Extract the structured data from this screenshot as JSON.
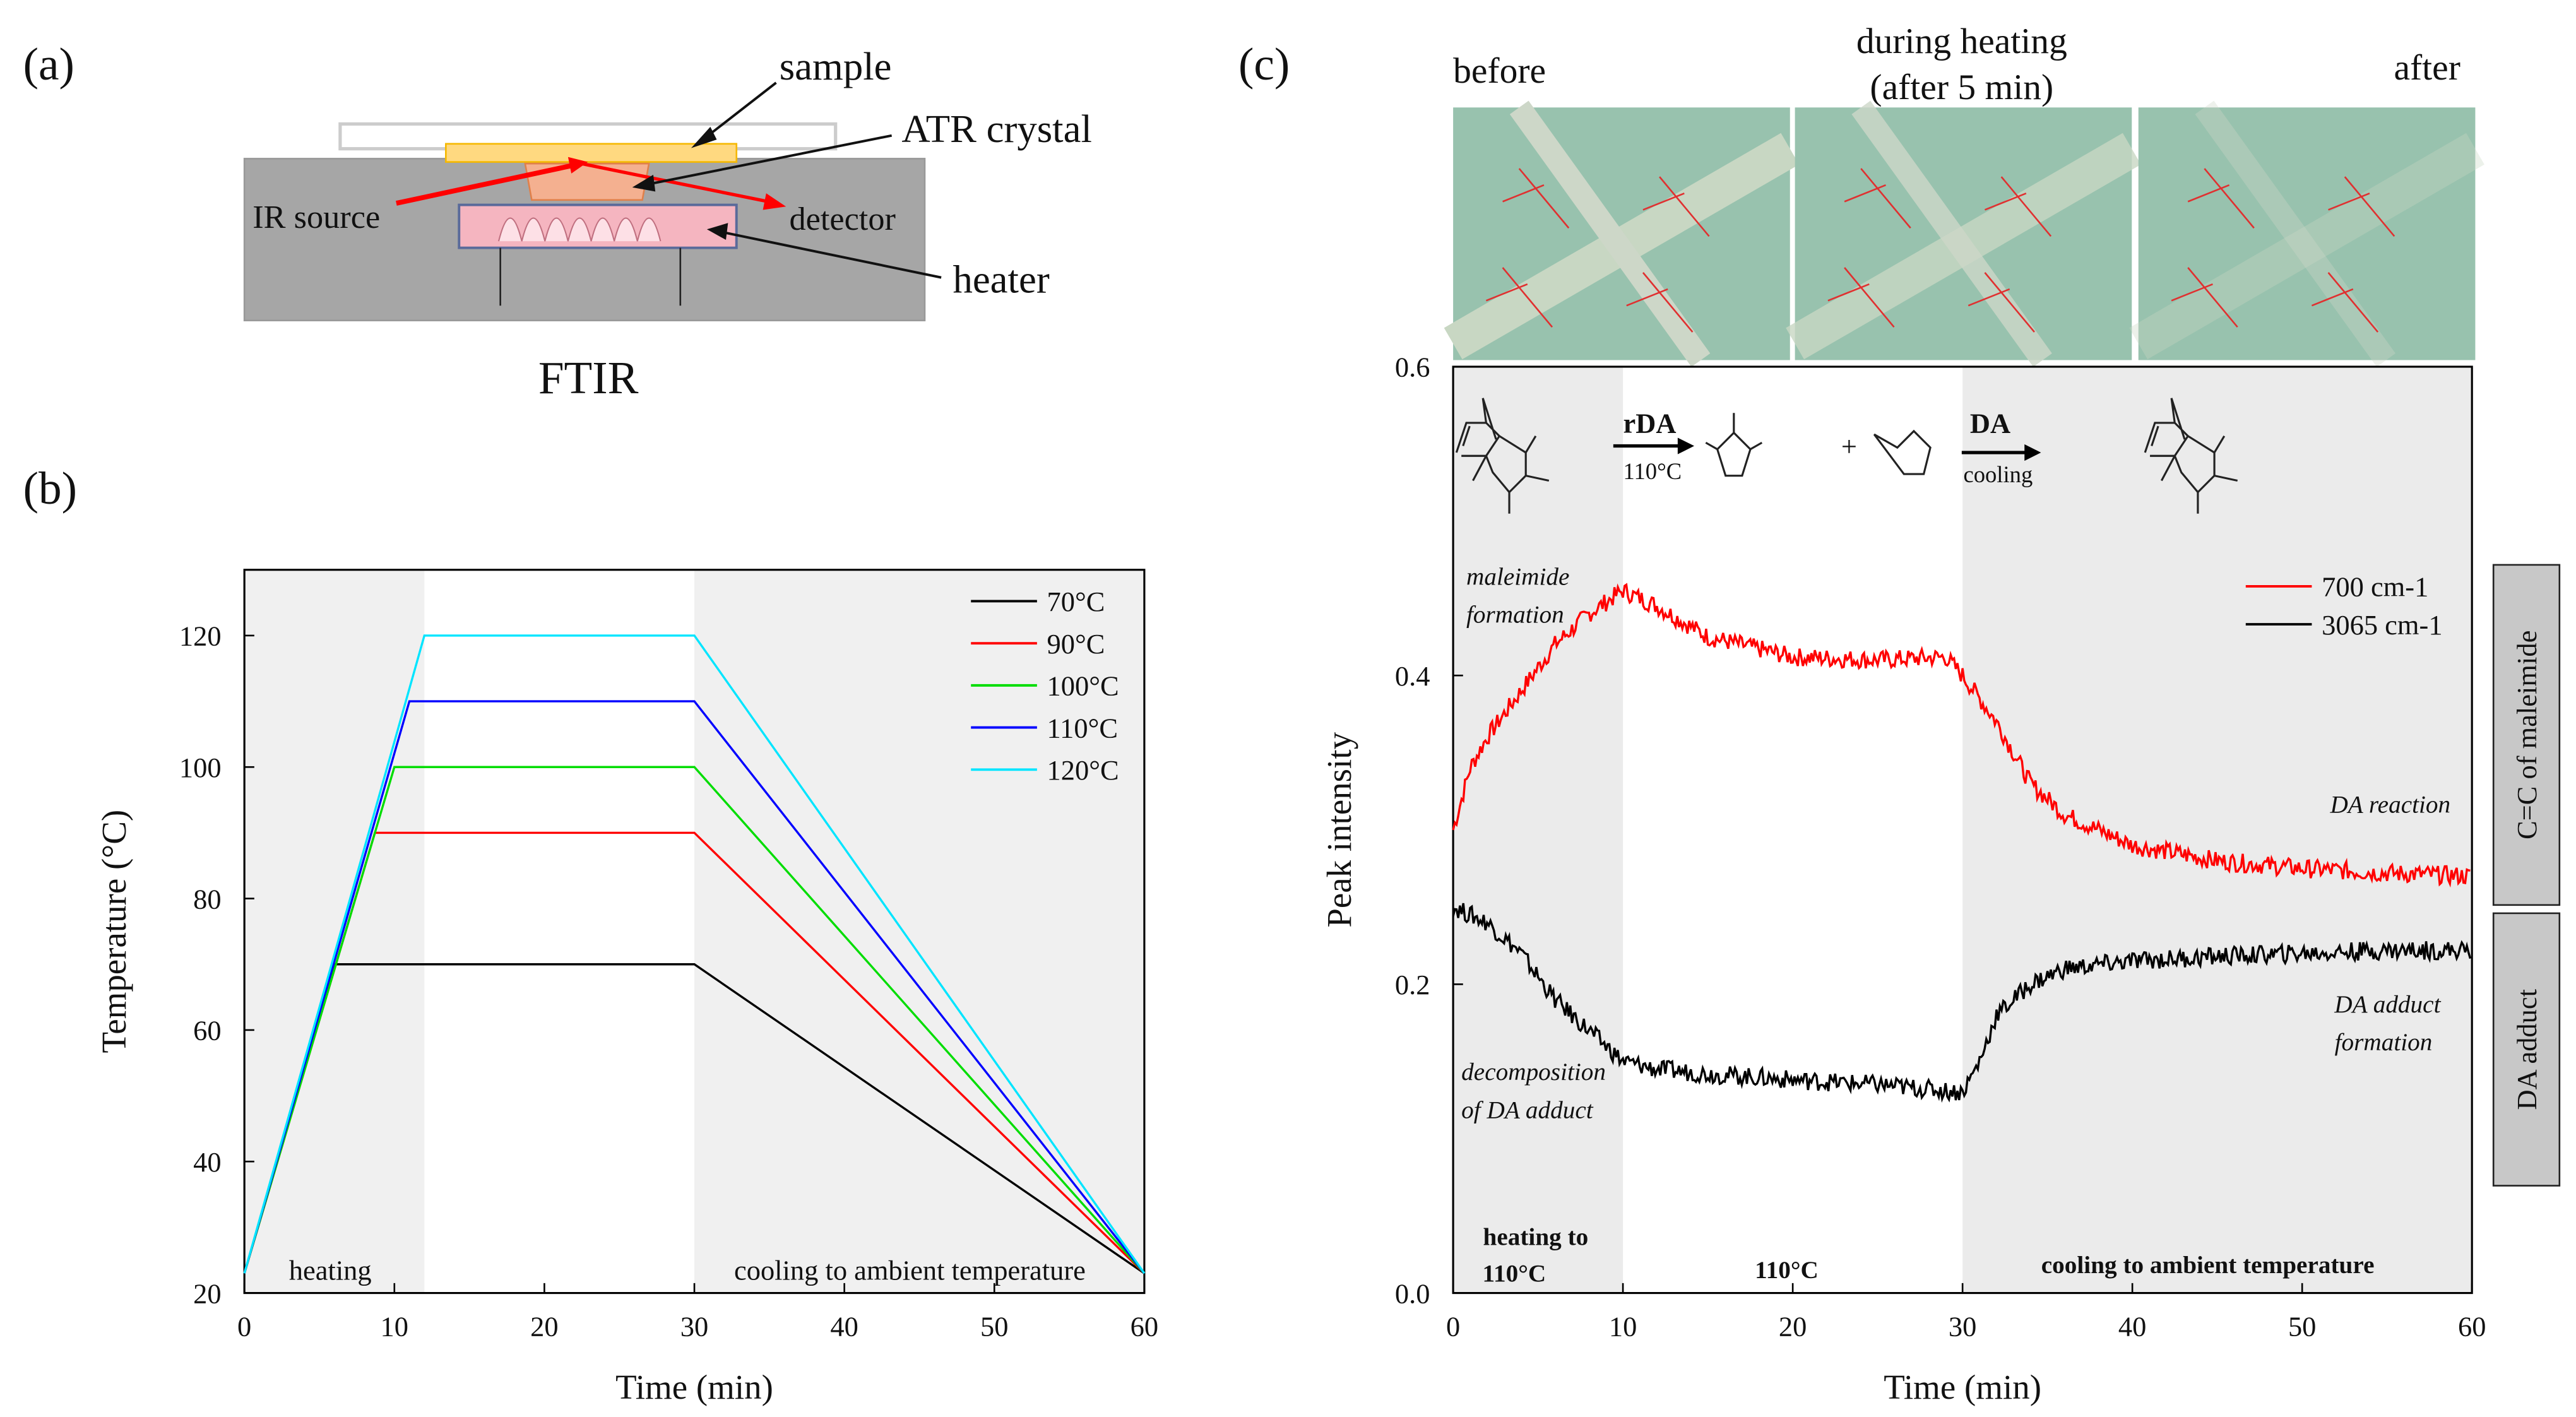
{
  "panel_a": {
    "label": "(a)",
    "title": "FTIR",
    "labels": {
      "sample": "sample",
      "atr": "ATR crystal",
      "ir_source": "IR source",
      "detector": "detector",
      "heater": "heater"
    }
  },
  "panel_c_photos": {
    "before": "before",
    "during_line1": "during heating",
    "during_line2": "(after 5 min)",
    "after": "after"
  },
  "reaction": {
    "rda": "rDA",
    "rda_cond": "110°C",
    "plus": "+",
    "da": "DA",
    "da_cond": "cooling"
  },
  "side_boxes": {
    "top": "C=C of maleimide",
    "bottom": "DA adduct"
  },
  "chart_data": [
    {
      "panel": "(b)",
      "type": "line",
      "xlabel": "Time (min)",
      "ylabel": "Temperature (°C)",
      "xlim": [
        0,
        60
      ],
      "ylim": [
        20,
        130
      ],
      "xticks": [
        0,
        10,
        20,
        30,
        40,
        50,
        60
      ],
      "yticks": [
        20,
        40,
        60,
        80,
        100,
        120
      ],
      "grid": false,
      "legend_position": "top-right",
      "shaded_regions": [
        {
          "x": [
            0,
            12
          ],
          "label": "heating"
        },
        {
          "x": [
            30,
            60
          ],
          "label": "cooling to ambient temperature"
        }
      ],
      "series": [
        {
          "name": "70°C",
          "color": "#000000",
          "x": [
            0,
            6,
            30,
            60
          ],
          "y": [
            23,
            70,
            70,
            23
          ]
        },
        {
          "name": "90°C",
          "color": "#ff0000",
          "x": [
            0,
            8.7,
            30,
            60
          ],
          "y": [
            23,
            90,
            90,
            23
          ]
        },
        {
          "name": "100°C",
          "color": "#00dd00",
          "x": [
            0,
            10,
            30,
            60
          ],
          "y": [
            23,
            100,
            100,
            23
          ]
        },
        {
          "name": "110°C",
          "color": "#0000ff",
          "x": [
            0,
            11,
            30,
            60
          ],
          "y": [
            23,
            110,
            110,
            23
          ]
        },
        {
          "name": "120°C",
          "color": "#00e5ff",
          "x": [
            0,
            12,
            30,
            60
          ],
          "y": [
            23,
            120,
            120,
            23
          ]
        }
      ]
    },
    {
      "panel": "(c)",
      "type": "line",
      "xlabel": "Time (min)",
      "ylabel": "Peak intensity",
      "xlim": [
        0,
        60
      ],
      "ylim": [
        0.0,
        0.6
      ],
      "xticks": [
        0,
        10,
        20,
        30,
        40,
        50,
        60
      ],
      "yticks": [
        "0.0",
        "0.2",
        "0.4",
        "0.6"
      ],
      "grid": false,
      "legend_position": "top-right",
      "shaded_regions": [
        {
          "x": [
            0,
            10
          ],
          "label1": "heating to",
          "label2": "110°C"
        },
        {
          "x": [
            30,
            60
          ],
          "label": "cooling to ambient temperature"
        }
      ],
      "middle_label": "110°C",
      "annotations": {
        "maleimide_1": "maleimide",
        "maleimide_2": "formation",
        "da_reaction": "DA reaction",
        "decomp_1": "decomposition",
        "decomp_2": "of DA adduct",
        "adduct_1": "DA adduct",
        "adduct_2": "formation"
      },
      "series": [
        {
          "name": "700 cm-1",
          "color": "#ff0000",
          "x": [
            0,
            1,
            2,
            4,
            6,
            8,
            10,
            12,
            15,
            20,
            25,
            29,
            30,
            32,
            34,
            36,
            40,
            45,
            50,
            55,
            60
          ],
          "y": [
            0.3,
            0.34,
            0.36,
            0.39,
            0.42,
            0.44,
            0.455,
            0.445,
            0.425,
            0.412,
            0.41,
            0.412,
            0.4,
            0.37,
            0.33,
            0.31,
            0.29,
            0.28,
            0.275,
            0.272,
            0.27
          ]
        },
        {
          "name": "3065 cm-1",
          "color": "#000000",
          "x": [
            0,
            2,
            4,
            6,
            8,
            10,
            12,
            15,
            20,
            25,
            30,
            31,
            32,
            34,
            36,
            40,
            45,
            50,
            55,
            60
          ],
          "y": [
            0.25,
            0.24,
            0.22,
            0.19,
            0.17,
            0.15,
            0.145,
            0.142,
            0.138,
            0.135,
            0.13,
            0.15,
            0.18,
            0.2,
            0.21,
            0.215,
            0.218,
            0.22,
            0.222,
            0.222
          ]
        }
      ]
    }
  ]
}
